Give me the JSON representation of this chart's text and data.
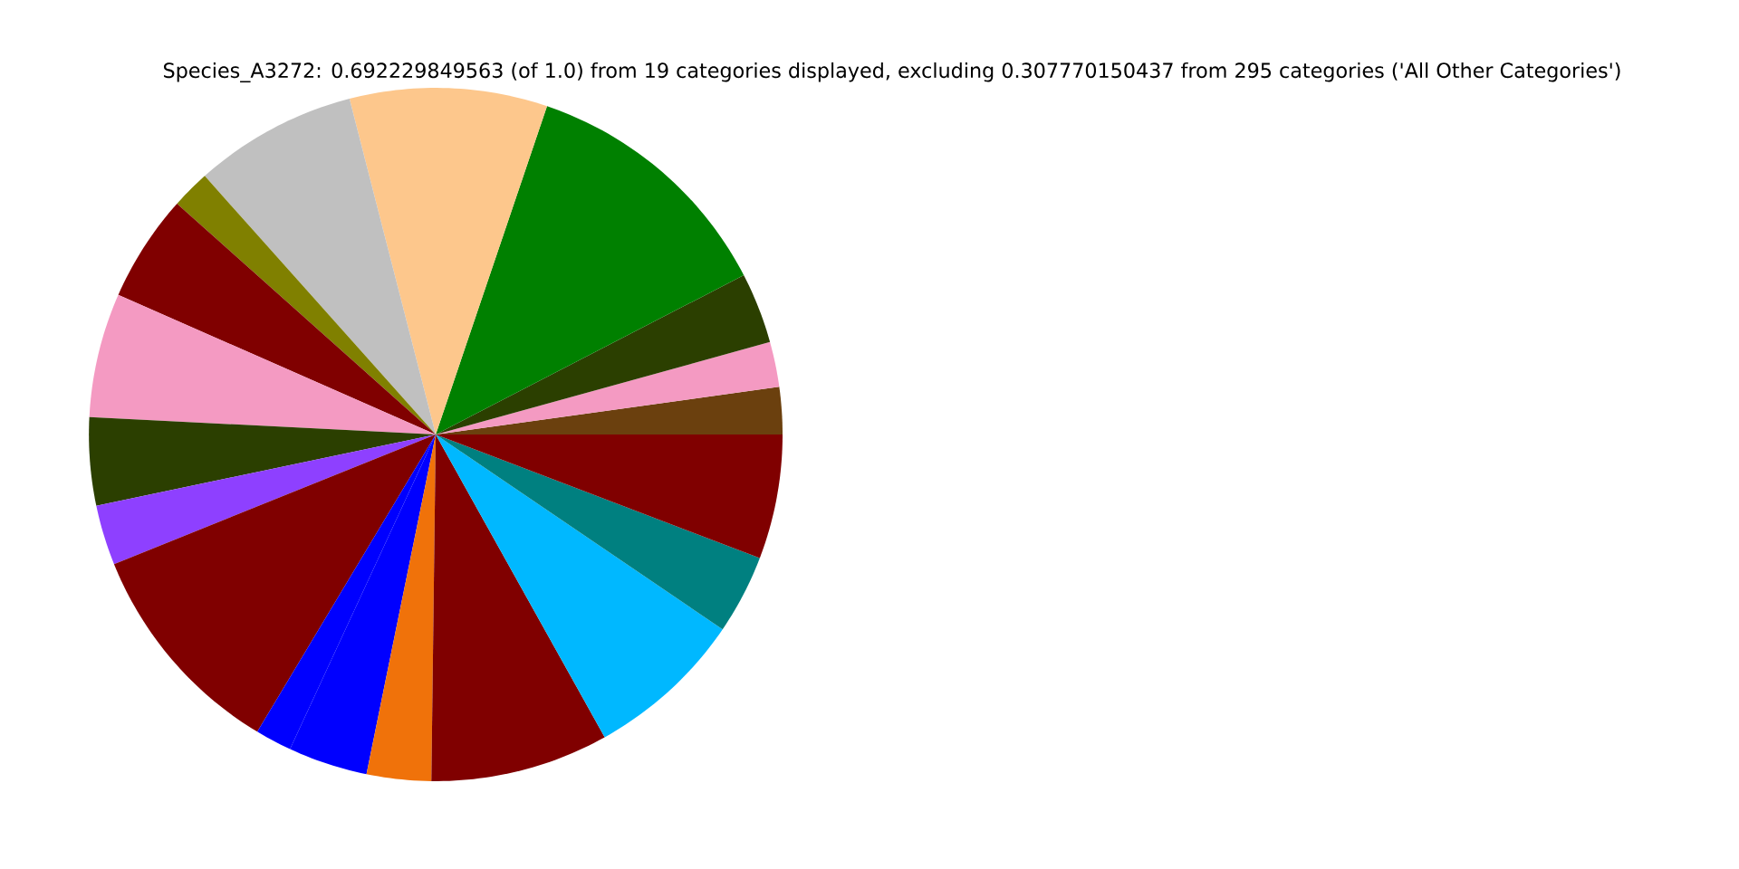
{
  "chart_data": {
    "type": "pie",
    "title": "Species_A3272: 0.692229849563 (of 1.0) from 19 categories displayed, excluding 0.307770150437 from 295 categories ('All Other Categories')",
    "categories": [
      null,
      null,
      null,
      null,
      null,
      null,
      null,
      null,
      null,
      null,
      null,
      null,
      null,
      null,
      null,
      null,
      null,
      null,
      null
    ],
    "values": [
      2.2,
      2.1,
      3.3,
      12.2,
      9.2,
      7.6,
      1.8,
      5.0,
      5.8,
      4.1,
      2.8,
      10.3,
      1.7,
      3.7,
      3.0,
      8.3,
      7.4,
      3.7,
      5.8
    ],
    "colors": [
      "#6b400e",
      "#f49ac2",
      "#2b3f00",
      "#008000",
      "#fdc78c",
      "#c0c0c0",
      "#808000",
      "#800000",
      "#f49ac2",
      "#2b3f00",
      "#8e40ff",
      "#800000",
      "#0000ff",
      "#0000ff",
      "#f0720a",
      "#800000",
      "#00b8ff",
      "#008080",
      "#800000"
    ]
  }
}
